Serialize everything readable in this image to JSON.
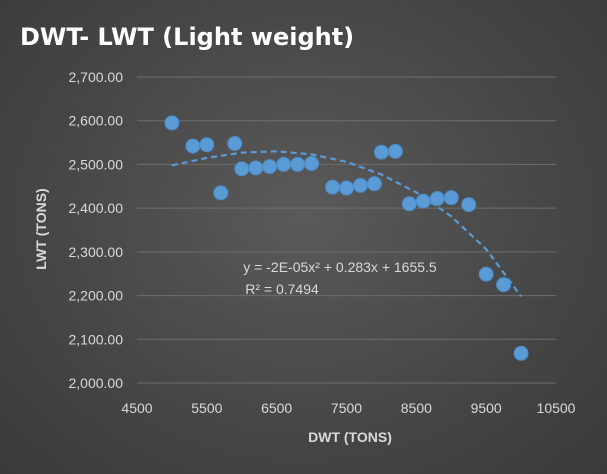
{
  "chart_data": {
    "type": "scatter",
    "title": "DWT- LWT (Light weight)",
    "xlabel": "DWT (TONS)",
    "ylabel": "LWT (TONS)",
    "xlim": [
      4500,
      10500
    ],
    "ylim": [
      2000,
      2700
    ],
    "x_ticks": [
      4500,
      5500,
      6500,
      7500,
      8500,
      9500,
      10500
    ],
    "x_tick_labels": [
      "4500",
      "5500",
      "6500",
      "7500",
      "8500",
      "9500",
      "10500"
    ],
    "y_ticks": [
      2000,
      2100,
      2200,
      2300,
      2400,
      2500,
      2600,
      2700
    ],
    "y_tick_labels": [
      "2,000.00",
      "2,100.00",
      "2,200.00",
      "2,300.00",
      "2,400.00",
      "2,500.00",
      "2,600.00",
      "2,700.00"
    ],
    "grid": "horizontal",
    "marker_color": "#5b9bd5",
    "points": [
      {
        "x": 5000,
        "y": 2595
      },
      {
        "x": 5300,
        "y": 2542
      },
      {
        "x": 5500,
        "y": 2545
      },
      {
        "x": 5700,
        "y": 2435
      },
      {
        "x": 5900,
        "y": 2548
      },
      {
        "x": 6000,
        "y": 2490
      },
      {
        "x": 6200,
        "y": 2492
      },
      {
        "x": 6400,
        "y": 2495
      },
      {
        "x": 6600,
        "y": 2500
      },
      {
        "x": 6800,
        "y": 2500
      },
      {
        "x": 7000,
        "y": 2502
      },
      {
        "x": 7300,
        "y": 2448
      },
      {
        "x": 7500,
        "y": 2446
      },
      {
        "x": 7700,
        "y": 2452
      },
      {
        "x": 7900,
        "y": 2456
      },
      {
        "x": 8000,
        "y": 2528
      },
      {
        "x": 8200,
        "y": 2530
      },
      {
        "x": 8400,
        "y": 2410
      },
      {
        "x": 8600,
        "y": 2416
      },
      {
        "x": 8800,
        "y": 2422
      },
      {
        "x": 9000,
        "y": 2424
      },
      {
        "x": 9250,
        "y": 2408
      },
      {
        "x": 9500,
        "y": 2249
      },
      {
        "x": 9750,
        "y": 2225
      },
      {
        "x": 10000,
        "y": 2068
      }
    ],
    "trendline": {
      "type": "polynomial",
      "x_start": 5000,
      "x_end": 10000,
      "points": [
        {
          "x": 5000,
          "y": 2498
        },
        {
          "x": 5500,
          "y": 2515
        },
        {
          "x": 6000,
          "y": 2527
        },
        {
          "x": 6500,
          "y": 2530
        },
        {
          "x": 7000,
          "y": 2523
        },
        {
          "x": 7500,
          "y": 2506
        },
        {
          "x": 8000,
          "y": 2477
        },
        {
          "x": 8500,
          "y": 2436
        },
        {
          "x": 9000,
          "y": 2381
        },
        {
          "x": 9500,
          "y": 2306
        },
        {
          "x": 10000,
          "y": 2198
        }
      ],
      "equation": "y = -2E-05x² + 0.283x + 1655.5",
      "r_squared": "R² = 0.7494"
    }
  }
}
